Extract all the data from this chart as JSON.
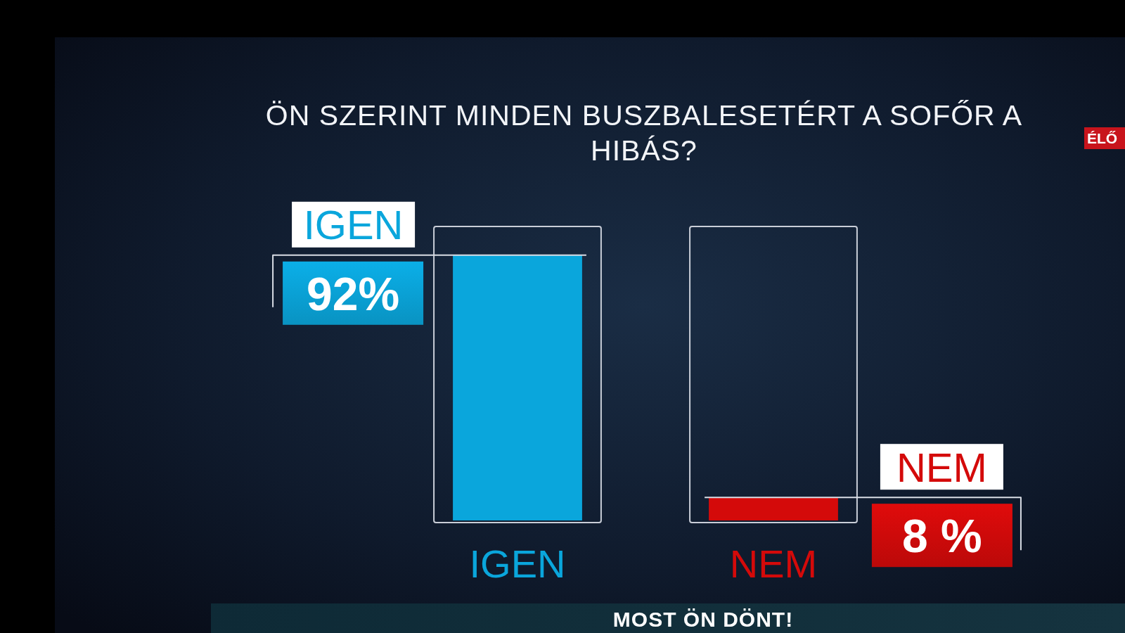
{
  "chart_data": {
    "type": "bar",
    "title": "ÖN SZERINT MINDEN BUSZBALESETÉRT A SOFŐR A HIBÁS?",
    "categories": [
      "IGEN",
      "NEM"
    ],
    "values": [
      92,
      8
    ],
    "colors": [
      "#0aa6dc",
      "#d40a0a"
    ],
    "value_labels": [
      "92%",
      "8 %"
    ],
    "tick_labels": "x",
    "annotations": [
      "ÉLŐ",
      "MOST ÖN DÖNT!"
    ]
  }
}
